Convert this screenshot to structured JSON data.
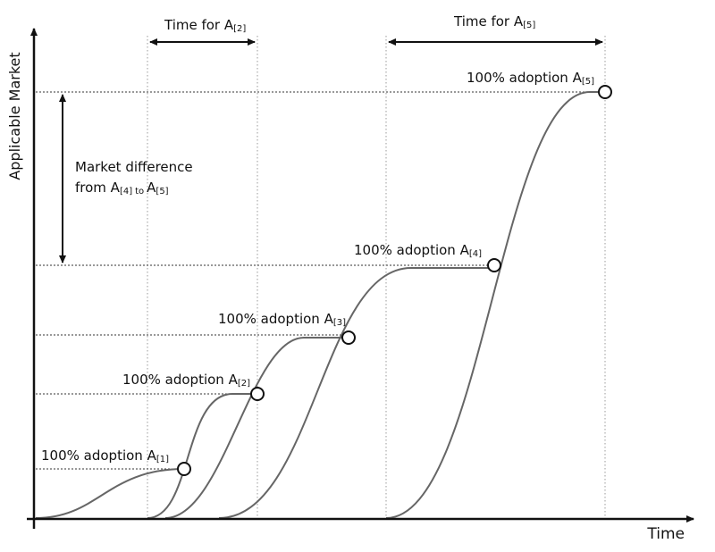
{
  "axes": {
    "y_label": "Applicable Market",
    "x_label": "Time"
  },
  "annotations": {
    "time_a2": {
      "text": "Time for A",
      "sub": "[2]"
    },
    "time_a5": {
      "text": "Time for A",
      "sub": "[5]"
    },
    "market_difference": {
      "line1": "Market difference",
      "line2": "from A",
      "sub1": "[4]",
      "to": "to",
      "a": "A",
      "sub2": "[5]"
    }
  },
  "milestones": [
    {
      "label": "100% adoption A",
      "sub": "[1]"
    },
    {
      "label": "100% adoption A",
      "sub": "[2]"
    },
    {
      "label": "100% adoption A",
      "sub": "[3]"
    },
    {
      "label": "100% adoption A",
      "sub": "[4]"
    },
    {
      "label": "100% adoption A",
      "sub": "[5]"
    }
  ]
}
